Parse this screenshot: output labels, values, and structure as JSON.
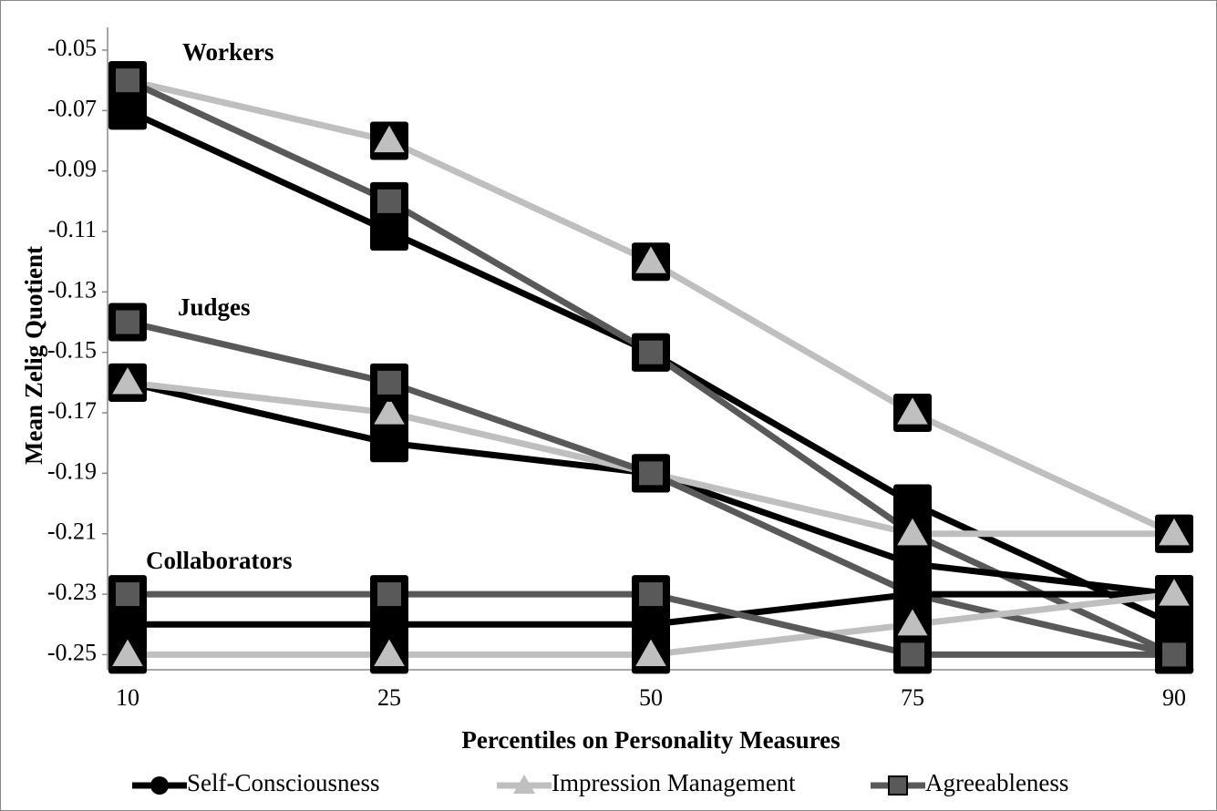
{
  "chart_data": {
    "type": "line",
    "x_label": "Percentiles on Personality Measures",
    "y_label": "Mean Zelig Quotient",
    "categories": [
      10,
      25,
      50,
      75,
      90
    ],
    "groups": [
      "Workers",
      "Judges",
      "Collaborators"
    ],
    "series": [
      {
        "name": "Self-Consciousness",
        "color": "#000000",
        "marker": "circle",
        "values": [
          [
            -0.07,
            -0.11,
            -0.15,
            -0.2,
            -0.24
          ],
          [
            -0.16,
            -0.18,
            -0.19,
            -0.22,
            -0.23
          ],
          [
            -0.24,
            -0.24,
            -0.24,
            -0.23,
            -0.23
          ]
        ]
      },
      {
        "name": "Impression Management",
        "color": "#bfbfbf",
        "marker": "triangle",
        "values": [
          [
            -0.06,
            -0.08,
            -0.12,
            -0.17,
            -0.21
          ],
          [
            -0.16,
            -0.17,
            -0.19,
            -0.21,
            -0.21
          ],
          [
            -0.25,
            -0.25,
            -0.25,
            -0.24,
            -0.23
          ]
        ]
      },
      {
        "name": "Agreeableness",
        "color": "#595959",
        "marker": "square",
        "values": [
          [
            -0.06,
            -0.1,
            -0.15,
            -0.21,
            -0.25
          ],
          [
            -0.14,
            -0.16,
            -0.19,
            -0.23,
            -0.25
          ],
          [
            -0.23,
            -0.23,
            -0.23,
            -0.25,
            -0.25
          ]
        ]
      }
    ],
    "ylim": [
      -0.255,
      -0.05
    ],
    "yticks": [
      -0.05,
      -0.07,
      -0.09,
      -0.11,
      -0.13,
      -0.15,
      -0.17,
      -0.19,
      -0.21,
      -0.23,
      -0.25
    ],
    "legend": "bottom"
  }
}
